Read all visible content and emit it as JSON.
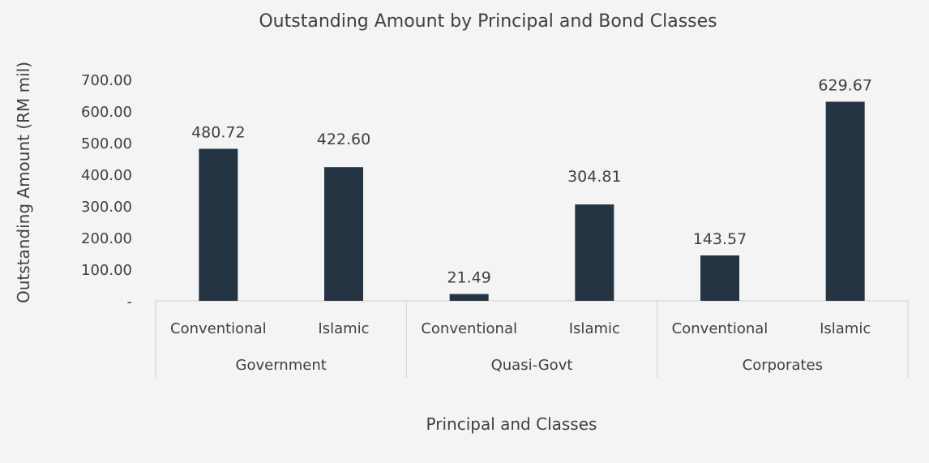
{
  "chart_data": {
    "type": "bar",
    "title": "Outstanding Amount by Principal and Bond Classes",
    "xlabel": "Principal and Classes",
    "ylabel": "Outstanding Amount (RM mil)",
    "ylim": [
      0,
      700
    ],
    "ytick_values": [
      0,
      100,
      200,
      300,
      400,
      500,
      600,
      700
    ],
    "ytick_labels": [
      "-",
      "100.00",
      "200.00",
      "300.00",
      "400.00",
      "500.00",
      "600.00",
      "700.00"
    ],
    "groups": [
      {
        "name": "Government",
        "categories": [
          "Conventional",
          "Islamic"
        ]
      },
      {
        "name": "Quasi-Govt",
        "categories": [
          "Conventional",
          "Islamic"
        ]
      },
      {
        "name": "Corporates",
        "categories": [
          "Conventional",
          "Islamic"
        ]
      }
    ],
    "values": [
      480.72,
      422.6,
      21.49,
      304.81,
      143.57,
      629.67
    ],
    "value_labels": [
      "480.72",
      "422.60",
      "21.49",
      "304.81",
      "143.57",
      "629.67"
    ],
    "bar_color": "#253443",
    "grid": false,
    "legend": "none"
  }
}
